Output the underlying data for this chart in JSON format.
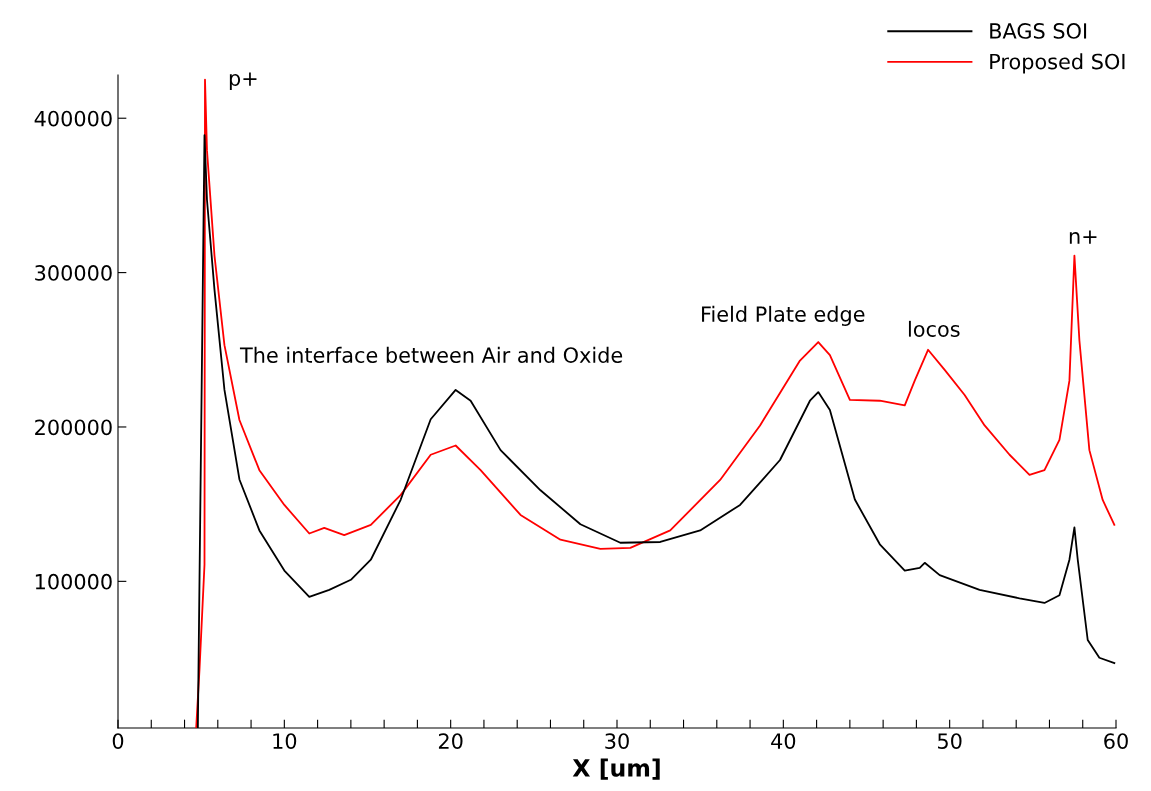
{
  "chart_data": {
    "type": "line",
    "xlabel": "X [um]",
    "xlim": [
      0,
      60
    ],
    "ylim": [
      5000,
      428000
    ],
    "xticks": [
      0,
      {
        "value": 2,
        "label": null
      },
      {
        "value": 4,
        "label": null
      },
      {
        "value": 6,
        "label": null
      },
      {
        "value": 8,
        "label": null
      },
      10,
      {
        "value": 12,
        "label": null
      },
      {
        "value": 14,
        "label": null
      },
      {
        "value": 16,
        "label": null
      },
      {
        "value": 18,
        "label": null
      },
      20,
      {
        "value": 22,
        "label": null
      },
      {
        "value": 24,
        "label": null
      },
      {
        "value": 26,
        "label": null
      },
      {
        "value": 28,
        "label": null
      },
      30,
      {
        "value": 32,
        "label": null
      },
      {
        "value": 34,
        "label": null
      },
      {
        "value": 36,
        "label": null
      },
      {
        "value": 38,
        "label": null
      },
      40,
      {
        "value": 42,
        "label": null
      },
      {
        "value": 44,
        "label": null
      },
      {
        "value": 46,
        "label": null
      },
      {
        "value": 48,
        "label": null
      },
      50,
      {
        "value": 52,
        "label": null
      },
      {
        "value": 54,
        "label": null
      },
      {
        "value": 56,
        "label": null
      },
      {
        "value": 58,
        "label": null
      },
      60
    ],
    "yticks": [
      100000,
      200000,
      300000,
      400000
    ],
    "grid": false,
    "legend": "top right",
    "marker": "none",
    "line_style": "solid",
    "series": [
      {
        "name": "BAGS SOI",
        "color": "#000000",
        "x": [
          4.8,
          5.2,
          5.35,
          5.8,
          6.4,
          7.3,
          8.5,
          10,
          11.5,
          12.7,
          14,
          15.2,
          17,
          18.8,
          20.3,
          21.2,
          23,
          25.4,
          27.8,
          30.2,
          32.6,
          35,
          37.4,
          39.8,
          41.6,
          42.1,
          42.8,
          44.3,
          45.8,
          47.3,
          48.2,
          48.5,
          49.4,
          51.8,
          54.2,
          55.7,
          56.6,
          57.2,
          57.5,
          57.7,
          58.3,
          59,
          59.9
        ],
        "values": [
          5000,
          389000,
          347000,
          289000,
          224000,
          166000,
          133000,
          107000,
          90000,
          94500,
          101000,
          114000,
          153000,
          205000,
          224000,
          217000,
          185000,
          159000,
          137000,
          125000,
          125500,
          133000,
          149500,
          178600,
          217000,
          222600,
          211000,
          153000,
          124000,
          107000,
          108700,
          112000,
          104000,
          94500,
          89000,
          86000,
          91000,
          114000,
          135000,
          114000,
          62000,
          50500,
          47000
        ]
      },
      {
        "name": "Proposed SOI",
        "color": "#ff0000",
        "x": [
          4.7,
          4.9,
          5.2,
          5.23,
          5.35,
          5.8,
          6.4,
          7.3,
          8.5,
          10,
          11.5,
          12.4,
          13.6,
          15.2,
          17,
          18.8,
          20.3,
          21.8,
          24.2,
          26.6,
          29,
          30.8,
          33.2,
          36.2,
          38.6,
          41,
          42.1,
          42.8,
          44,
          45.8,
          47.3,
          47.9,
          48.7,
          49.7,
          50.9,
          52.1,
          53.6,
          54.8,
          55.7,
          56.6,
          57.2,
          57.5,
          57.8,
          58.4,
          59.2,
          59.9
        ],
        "values": [
          5000,
          43000,
          110700,
          425000,
          379000,
          311000,
          253000,
          204500,
          172000,
          149500,
          131000,
          134600,
          130000,
          136600,
          156000,
          182000,
          188000,
          172000,
          143000,
          127000,
          121000,
          121700,
          133000,
          165700,
          201000,
          243000,
          255000,
          246600,
          217500,
          217000,
          214000,
          230000,
          250000,
          237000,
          220700,
          201000,
          182000,
          169000,
          172000,
          191600,
          230000,
          311000,
          256000,
          185000,
          152700,
          136600
        ]
      }
    ],
    "annotations": [
      "p+",
      "n+",
      "The interface between Air and Oxide",
      "Field Plate edge",
      "locos"
    ]
  }
}
